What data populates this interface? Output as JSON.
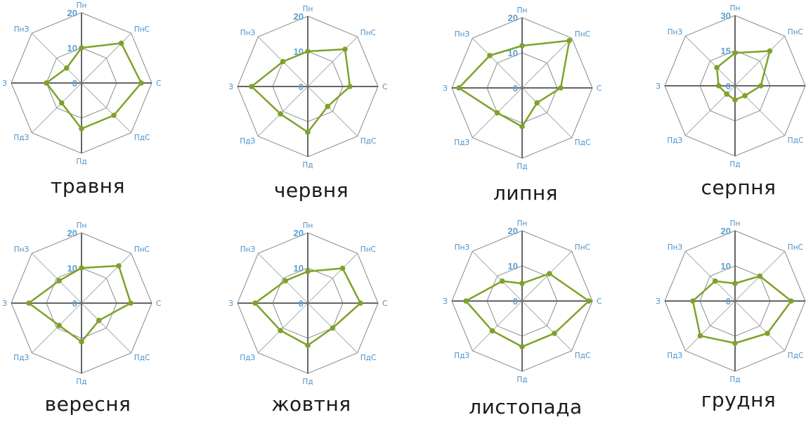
{
  "direction_labels": [
    "Пн",
    "ПнС",
    "С",
    "ПдС",
    "Пд",
    "ПдЗ",
    "З",
    "ПнЗ"
  ],
  "colors": {
    "series": "#7ea22a",
    "grid": "#8a8a8a",
    "axis": "#666666",
    "label": "#4a90c8"
  },
  "chart_data": [
    {
      "type": "radar",
      "title": "травня",
      "categories": [
        "Пн",
        "ПнС",
        "С",
        "ПдС",
        "Пд",
        "ПдЗ",
        "З",
        "ПнЗ"
      ],
      "ticks": [
        "0",
        "10",
        "20"
      ],
      "rmax": 20,
      "series": [
        {
          "values": [
            10,
            16,
            17,
            13,
            13,
            8,
            10,
            6
          ]
        }
      ]
    },
    {
      "type": "radar",
      "title": "червня",
      "categories": [
        "Пн",
        "ПнС",
        "С",
        "ПдС",
        "Пд",
        "ПдЗ",
        "З",
        "ПнЗ"
      ],
      "ticks": [
        "0",
        "10",
        "20"
      ],
      "rmax": 20,
      "series": [
        {
          "values": [
            10,
            15,
            12,
            8,
            13,
            11,
            16,
            10
          ]
        }
      ]
    },
    {
      "type": "radar",
      "title": "липня",
      "categories": [
        "Пн",
        "ПнС",
        "С",
        "ПдС",
        "Пд",
        "ПдЗ",
        "З",
        "ПнЗ"
      ],
      "ticks": [
        "0",
        "10",
        "20"
      ],
      "rmax": 20,
      "series": [
        {
          "values": [
            12,
            19,
            11,
            6,
            11,
            10,
            18,
            13
          ]
        }
      ]
    },
    {
      "type": "radar",
      "title": "серпня",
      "categories": [
        "Пн",
        "ПнС",
        "С",
        "ПдС",
        "Пд",
        "ПдЗ",
        "З",
        "ПнЗ"
      ],
      "ticks": [
        "0",
        "15",
        "30"
      ],
      "rmax": 30,
      "series": [
        {
          "values": [
            14,
            21,
            11,
            6,
            6,
            5,
            7,
            11
          ]
        }
      ]
    },
    {
      "type": "radar",
      "title": "вересня",
      "categories": [
        "Пн",
        "ПнС",
        "С",
        "ПдС",
        "Пд",
        "ПдЗ",
        "З",
        "ПнЗ"
      ],
      "ticks": [
        "0",
        "10",
        "20"
      ],
      "rmax": 20,
      "series": [
        {
          "values": [
            10,
            15,
            14,
            7,
            11,
            9,
            15,
            9
          ]
        }
      ]
    },
    {
      "type": "radar",
      "title": "жовтня",
      "categories": [
        "Пн",
        "ПнС",
        "С",
        "ПдС",
        "Пд",
        "ПдЗ",
        "З",
        "ПнЗ"
      ],
      "ticks": [
        "0",
        "10",
        "20"
      ],
      "rmax": 20,
      "series": [
        {
          "values": [
            9,
            14,
            15,
            10,
            12,
            11,
            15,
            9
          ]
        }
      ]
    },
    {
      "type": "radar",
      "title": "листопада",
      "categories": [
        "Пн",
        "ПнС",
        "С",
        "ПдС",
        "Пд",
        "ПдЗ",
        "З",
        "ПнЗ"
      ],
      "ticks": [
        "0",
        "10",
        "20"
      ],
      "rmax": 20,
      "series": [
        {
          "values": [
            5,
            11,
            19,
            13,
            13,
            12,
            16,
            8
          ]
        }
      ]
    },
    {
      "type": "radar",
      "title": "грудня",
      "categories": [
        "Пн",
        "ПнС",
        "С",
        "ПдС",
        "Пд",
        "ПдЗ",
        "З",
        "ПнЗ"
      ],
      "ticks": [
        "0",
        "10",
        "20"
      ],
      "rmax": 20,
      "series": [
        {
          "values": [
            5,
            10,
            16,
            13,
            12,
            14,
            12,
            8
          ]
        }
      ]
    }
  ]
}
